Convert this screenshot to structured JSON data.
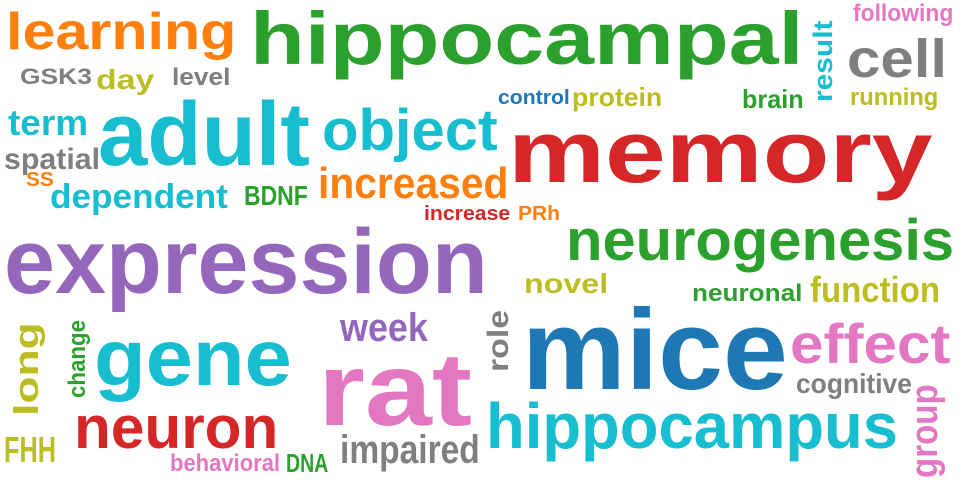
{
  "word_cloud": {
    "words": [
      {
        "id": "learning",
        "text": "learning",
        "color": "#ff7f0e"
      },
      {
        "id": "hippocampal",
        "text": "hippocampal",
        "color": "#2ca02c"
      },
      {
        "id": "result",
        "text": "result",
        "color": "#17becf",
        "orientation": "vertical"
      },
      {
        "id": "following",
        "text": "following",
        "color": "#e377c2"
      },
      {
        "id": "cell",
        "text": "cell",
        "color": "#7f7f7f"
      },
      {
        "id": "gsk3",
        "text": "GSK3",
        "color": "#7f7f7f"
      },
      {
        "id": "day",
        "text": "day",
        "color": "#bcbd22"
      },
      {
        "id": "level",
        "text": "level",
        "color": "#7f7f7f"
      },
      {
        "id": "control",
        "text": "control",
        "color": "#1f77b4"
      },
      {
        "id": "protein",
        "text": "protein",
        "color": "#bcbd22"
      },
      {
        "id": "brain",
        "text": "brain",
        "color": "#2ca02c"
      },
      {
        "id": "running",
        "text": "running",
        "color": "#bcbd22"
      },
      {
        "id": "term",
        "text": "term",
        "color": "#17becf"
      },
      {
        "id": "adult",
        "text": "adult",
        "color": "#17becf"
      },
      {
        "id": "object",
        "text": "object",
        "color": "#17becf"
      },
      {
        "id": "memory",
        "text": "memory",
        "color": "#d62728"
      },
      {
        "id": "spatial",
        "text": "spatial",
        "color": "#7f7f7f"
      },
      {
        "id": "ss",
        "text": "SS",
        "color": "#ff7f0e"
      },
      {
        "id": "increased",
        "text": "increased",
        "color": "#ff7f0e"
      },
      {
        "id": "dependent",
        "text": "dependent",
        "color": "#17becf"
      },
      {
        "id": "bdnf",
        "text": "BDNF",
        "color": "#2ca02c"
      },
      {
        "id": "increase",
        "text": "increase",
        "color": "#d62728"
      },
      {
        "id": "prh",
        "text": "PRh",
        "color": "#ff7f0e"
      },
      {
        "id": "expression",
        "text": "expression",
        "color": "#9467bd"
      },
      {
        "id": "neurogenesis",
        "text": "neurogenesis",
        "color": "#2ca02c"
      },
      {
        "id": "novel",
        "text": "novel",
        "color": "#bcbd22"
      },
      {
        "id": "neuronal",
        "text": "neuronal",
        "color": "#2ca02c"
      },
      {
        "id": "function",
        "text": "function",
        "color": "#bcbd22"
      },
      {
        "id": "long",
        "text": "long",
        "color": "#bcbd22",
        "orientation": "vertical"
      },
      {
        "id": "change",
        "text": "change",
        "color": "#2ca02c",
        "orientation": "vertical"
      },
      {
        "id": "gene",
        "text": "gene",
        "color": "#17becf"
      },
      {
        "id": "week",
        "text": "week",
        "color": "#9467bd"
      },
      {
        "id": "role",
        "text": "role",
        "color": "#7f7f7f",
        "orientation": "vertical"
      },
      {
        "id": "mice",
        "text": "mice",
        "color": "#1f77b4"
      },
      {
        "id": "effect",
        "text": "effect",
        "color": "#e377c2"
      },
      {
        "id": "rat",
        "text": "rat",
        "color": "#e377c2"
      },
      {
        "id": "cognitive",
        "text": "cognitive",
        "color": "#7f7f7f"
      },
      {
        "id": "group",
        "text": "group",
        "color": "#e377c2",
        "orientation": "vertical"
      },
      {
        "id": "neuron",
        "text": "neuron",
        "color": "#d62728"
      },
      {
        "id": "hippocampus",
        "text": "hippocampus",
        "color": "#17becf"
      },
      {
        "id": "fhh",
        "text": "FHH",
        "color": "#bcbd22"
      },
      {
        "id": "behavioral",
        "text": "behavioral",
        "color": "#e377c2"
      },
      {
        "id": "dna",
        "text": "DNA",
        "color": "#2ca02c"
      },
      {
        "id": "impaired",
        "text": "impaired",
        "color": "#7f7f7f"
      }
    ]
  }
}
